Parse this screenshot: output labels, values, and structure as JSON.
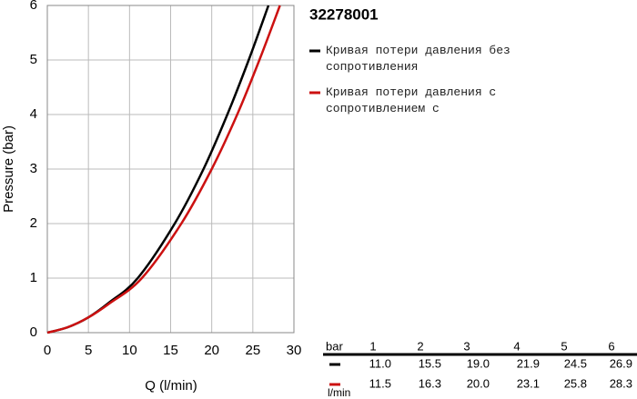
{
  "chart_data": {
    "type": "line",
    "title": "32278001",
    "x_label": "Q (l/min)",
    "y_label": "Pressure (bar)",
    "xlim": [
      0,
      30
    ],
    "ylim": [
      0,
      6
    ],
    "xticks": [
      0,
      5,
      10,
      15,
      20,
      25,
      30
    ],
    "yticks": [
      0,
      1,
      2,
      3,
      4,
      5,
      6
    ],
    "grid": true,
    "series": [
      {
        "name": "Кривая потери давления без сопротивления",
        "color": "#000000",
        "x": [
          0,
          2.5,
          5,
          7.5,
          11.0,
          15.5,
          19.0,
          21.9,
          24.5,
          26.9
        ],
        "values": [
          0,
          0.1,
          0.28,
          0.55,
          1,
          2,
          3,
          4,
          5,
          6
        ]
      },
      {
        "name": "Кривая потери давления с сопротивлением с",
        "color": "#cc1111",
        "x": [
          0,
          2.5,
          5,
          7.5,
          11.5,
          16.3,
          20.0,
          23.1,
          25.8,
          28.3
        ],
        "values": [
          0,
          0.1,
          0.28,
          0.53,
          1,
          2,
          3,
          4,
          5,
          6
        ]
      }
    ]
  },
  "table": {
    "header": [
      "bar",
      "1",
      "2",
      "3",
      "4",
      "5",
      "6"
    ],
    "rows": [
      [
        "11.0",
        "15.5",
        "19.0",
        "21.9",
        "24.5",
        "26.9"
      ],
      [
        "11.5",
        "16.3",
        "20.0",
        "23.1",
        "25.8",
        "28.3"
      ]
    ],
    "unit": "l/min"
  }
}
